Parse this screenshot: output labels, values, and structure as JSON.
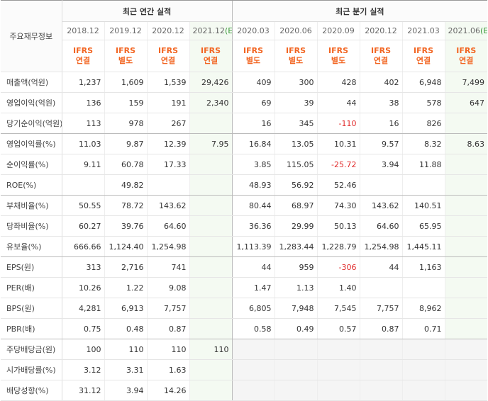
{
  "header": {
    "corner": "주요재무정보",
    "groups": [
      "최근 연간 실적",
      "최근 분기 실적"
    ]
  },
  "columns": [
    {
      "period": "2018.12",
      "ifrs": "IFRS",
      "basis": "연결"
    },
    {
      "period": "2019.12",
      "ifrs": "IFRS",
      "basis": "별도"
    },
    {
      "period": "2020.12",
      "ifrs": "IFRS",
      "basis": "연결"
    },
    {
      "period": "2021.12",
      "estimate": "(E)",
      "ifrs": "IFRS",
      "basis": "연결"
    },
    {
      "period": "2020.03",
      "ifrs": "IFRS",
      "basis": "별도"
    },
    {
      "period": "2020.06",
      "ifrs": "IFRS",
      "basis": "별도"
    },
    {
      "period": "2020.09",
      "ifrs": "IFRS",
      "basis": "별도"
    },
    {
      "period": "2020.12",
      "ifrs": "IFRS",
      "basis": "연결"
    },
    {
      "period": "2021.03",
      "ifrs": "IFRS",
      "basis": "연결"
    },
    {
      "period": "2021.06",
      "estimate": "(E)",
      "ifrs": "IFRS",
      "basis": "연결"
    }
  ],
  "table": {
    "rows": [
      {
        "label": "매출액(억원)",
        "cells": [
          "1,237",
          "1,609",
          "1,539",
          "29,426",
          "409",
          "300",
          "428",
          "402",
          "6,948",
          "7,499"
        ]
      },
      {
        "label": "영업이익(억원)",
        "cells": [
          "136",
          "159",
          "191",
          "2,340",
          "69",
          "39",
          "44",
          "38",
          "578",
          "647"
        ]
      },
      {
        "label": "당기순이익(억원)",
        "cells": [
          "113",
          "978",
          "267",
          null,
          "16",
          "345",
          "-110",
          "16",
          "826",
          null
        ]
      },
      {
        "label": "영업이익률(%)",
        "cells": [
          "11.03",
          "9.87",
          "12.39",
          "7.95",
          "16.84",
          "13.05",
          "10.31",
          "9.57",
          "8.32",
          "8.63"
        ]
      },
      {
        "label": "순이익률(%)",
        "cells": [
          "9.11",
          "60.78",
          "17.33",
          null,
          "3.85",
          "115.05",
          "-25.72",
          "3.94",
          "11.88",
          null
        ]
      },
      {
        "label": "ROE(%)",
        "cells": [
          null,
          "49.82",
          null,
          null,
          "48.93",
          "56.92",
          "52.46",
          null,
          null,
          null
        ]
      },
      {
        "label": "부채비율(%)",
        "cells": [
          "50.55",
          "78.72",
          "143.62",
          null,
          "80.44",
          "68.97",
          "74.30",
          "143.62",
          "140.51",
          null
        ]
      },
      {
        "label": "당좌비율(%)",
        "cells": [
          "60.27",
          "39.76",
          "64.60",
          null,
          "36.36",
          "29.99",
          "50.13",
          "64.60",
          "65.95",
          null
        ]
      },
      {
        "label": "유보율(%)",
        "cells": [
          "666.66",
          "1,124.40",
          "1,254.98",
          null,
          "1,113.39",
          "1,283.44",
          "1,228.79",
          "1,254.98",
          "1,445.11",
          null
        ]
      },
      {
        "label": "EPS(원)",
        "cells": [
          "313",
          "2,716",
          "741",
          null,
          "44",
          "959",
          "-306",
          "44",
          "1,163",
          null
        ]
      },
      {
        "label": "PER(배)",
        "cells": [
          "10.26",
          "1.22",
          "9.08",
          null,
          "1.47",
          "1.13",
          "1.40",
          null,
          null,
          null
        ]
      },
      {
        "label": "BPS(원)",
        "cells": [
          "4,281",
          "6,913",
          "7,757",
          null,
          "6,805",
          "7,948",
          "7,545",
          "7,757",
          "8,962",
          null
        ]
      },
      {
        "label": "PBR(배)",
        "cells": [
          "0.75",
          "0.48",
          "0.87",
          null,
          "0.58",
          "0.49",
          "0.57",
          "0.87",
          "0.71",
          null
        ]
      },
      {
        "label": "주당배당금(원)",
        "cells": [
          "100",
          "110",
          "110",
          "110",
          null,
          null,
          null,
          null,
          null,
          null
        ]
      },
      {
        "label": "시가배당률(%)",
        "cells": [
          "3.12",
          "3.31",
          "1.63",
          null,
          null,
          null,
          null,
          null,
          null,
          null
        ]
      },
      {
        "label": "배당성향(%)",
        "cells": [
          "31.12",
          "3.94",
          "14.26",
          null,
          null,
          null,
          null,
          null,
          null,
          null
        ]
      }
    ]
  }
}
